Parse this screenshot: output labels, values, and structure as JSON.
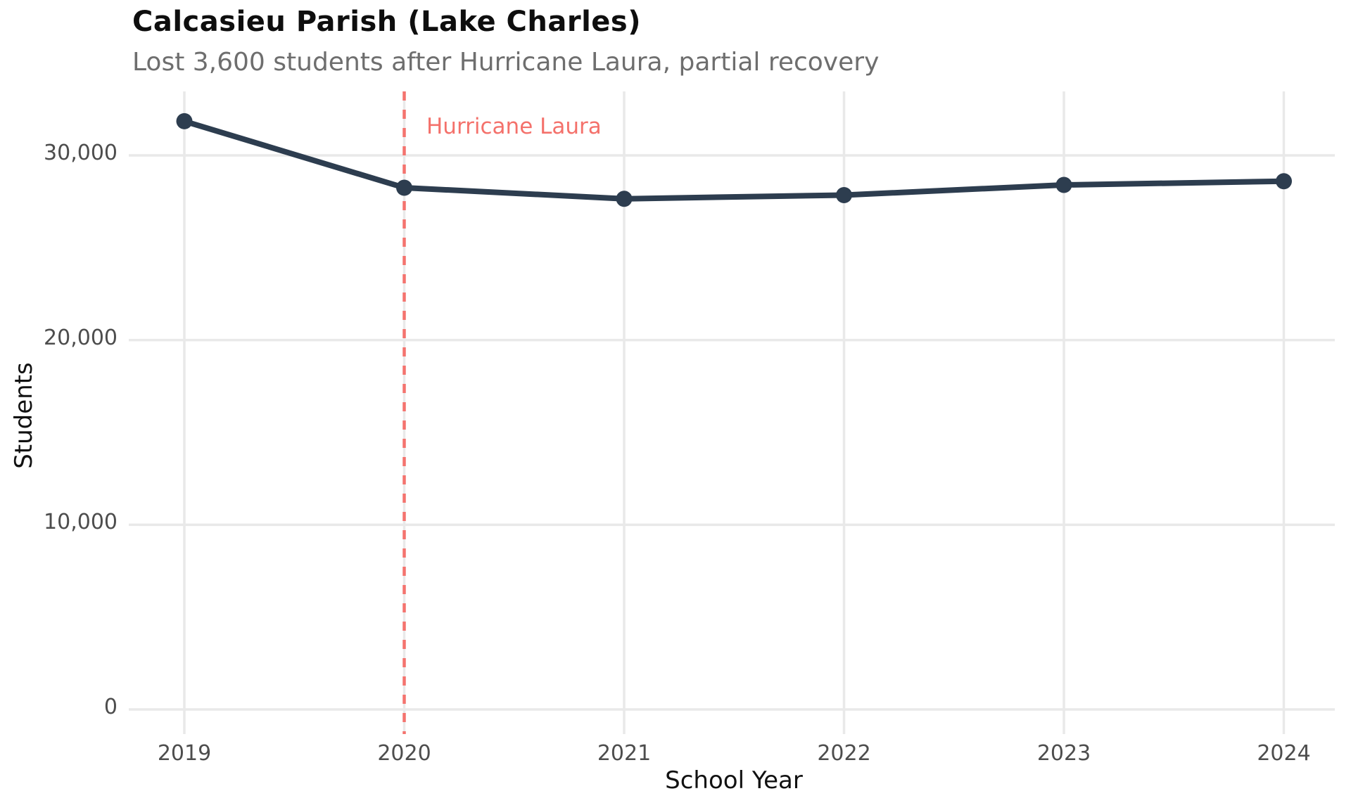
{
  "header": {
    "title": "Calcasieu Parish (Lake Charles)",
    "subtitle": "Lost 3,600 students after Hurricane Laura, partial recovery"
  },
  "chart_data": {
    "type": "line",
    "title": "Calcasieu Parish (Lake Charles)",
    "subtitle": "Lost 3,600 students after Hurricane Laura, partial recovery",
    "xlabel": "School Year",
    "ylabel": "Students",
    "categories": [
      "2019",
      "2020",
      "2021",
      "2022",
      "2023",
      "2024"
    ],
    "series": [
      {
        "name": "Students",
        "values": [
          31850,
          28250,
          27650,
          27850,
          28400,
          28600
        ]
      }
    ],
    "y_ticks": [
      0,
      10000,
      20000,
      30000
    ],
    "y_tick_labels": [
      "0",
      "10,000",
      "20,000",
      "30,000"
    ],
    "ylim": [
      -800,
      33500
    ],
    "grid": true,
    "legend": "none",
    "annotation": {
      "text": "Hurricane Laura",
      "x_category": "2020",
      "style": "dashed-vertical-line"
    },
    "colors": {
      "line": "#2d3d4f",
      "marker": "#2d3d4f",
      "event_line": "#f4736e",
      "annotation_text": "#f4716b",
      "grid": "#e9e9e9",
      "tick_label": "#4d4d4d",
      "axis_label": "#111111",
      "title": "#0e0e0e",
      "subtitle": "#6e6e6e",
      "background": "#ffffff"
    }
  }
}
